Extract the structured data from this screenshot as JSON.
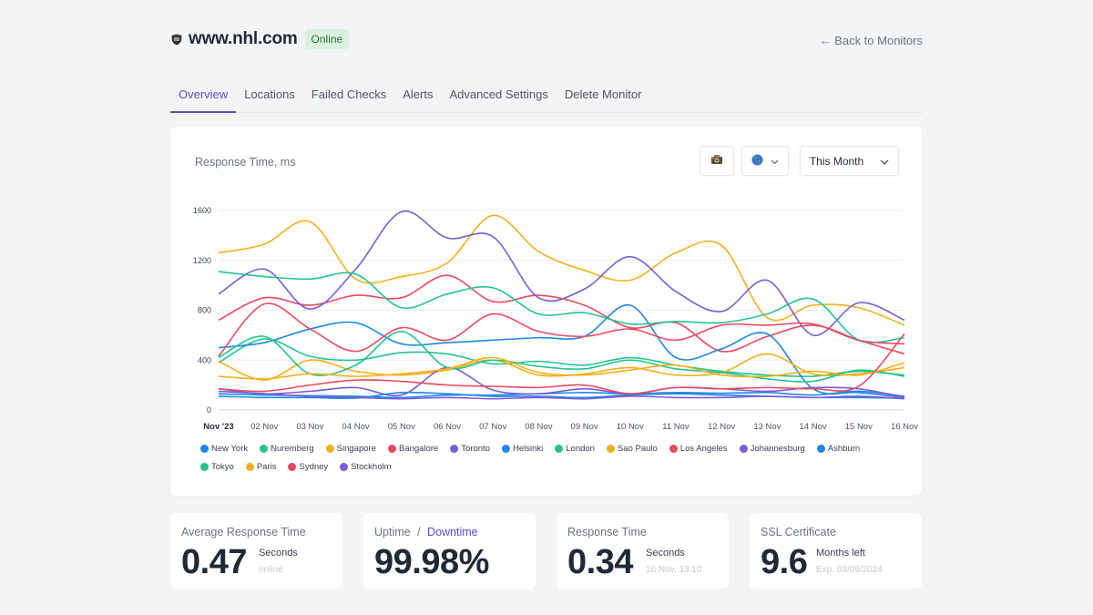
{
  "header": {
    "site": "www.nhl.com",
    "status": "Online",
    "back_label": "← Back to Monitors"
  },
  "tabs": [
    "Overview",
    "Locations",
    "Failed Checks",
    "Alerts",
    "Advanced Settings",
    "Delete Monitor"
  ],
  "active_tab": "Overview",
  "panel": {
    "title": "Response Time, ms",
    "camera_icon": "camera-icon",
    "globe_icon": "globe-icon",
    "range_label": "This Month"
  },
  "chart_data": {
    "type": "line",
    "x": [
      "Nov '23",
      "02 Nov",
      "03 Nov",
      "04 Nov",
      "05 Nov",
      "06 Nov",
      "07 Nov",
      "08 Nov",
      "09 Nov",
      "10 Nov",
      "11 Nov",
      "12 Nov",
      "13 Nov",
      "14 Nov",
      "15 Nov",
      "16 Nov"
    ],
    "ylim": [
      0,
      1600
    ],
    "yticks": [
      0,
      400,
      800,
      1200,
      1600
    ],
    "grid": true,
    "legend": "bottom",
    "series": [
      {
        "name": "New York",
        "color": "#1e88e5",
        "values": [
          130,
          120,
          115,
          110,
          100,
          120,
          120,
          130,
          140,
          130,
          140,
          135,
          140,
          120,
          150,
          110
        ]
      },
      {
        "name": "Nuremberg",
        "color": "#22c48f",
        "values": [
          380,
          570,
          430,
          400,
          460,
          450,
          370,
          390,
          360,
          420,
          360,
          310,
          280,
          270,
          310,
          280
        ]
      },
      {
        "name": "Singapore",
        "color": "#f2b01e",
        "values": [
          1260,
          1330,
          1510,
          1050,
          1070,
          1180,
          1560,
          1270,
          1120,
          1040,
          1260,
          1320,
          740,
          840,
          820,
          680
        ]
      },
      {
        "name": "Bangalore",
        "color": "#e84a5f",
        "values": [
          720,
          900,
          840,
          920,
          900,
          1080,
          870,
          920,
          840,
          660,
          700,
          470,
          590,
          680,
          560,
          450
        ]
      },
      {
        "name": "Toronto",
        "color": "#7b5cd6",
        "values": [
          930,
          1130,
          810,
          1130,
          1590,
          1380,
          1390,
          900,
          970,
          1230,
          950,
          790,
          1040,
          600,
          860,
          720
        ]
      },
      {
        "name": "Helsinki",
        "color": "#1e88e5",
        "values": [
          500,
          540,
          650,
          700,
          530,
          540,
          560,
          580,
          590,
          840,
          420,
          490,
          610,
          170,
          140,
          100
        ]
      },
      {
        "name": "London",
        "color": "#22c48f",
        "values": [
          1110,
          1070,
          1050,
          1090,
          820,
          930,
          980,
          770,
          780,
          690,
          710,
          700,
          770,
          890,
          560,
          580
        ]
      },
      {
        "name": "Sao Paulo",
        "color": "#f2b01e",
        "values": [
          390,
          240,
          400,
          310,
          280,
          320,
          400,
          280,
          290,
          340,
          280,
          300,
          450,
          290,
          290,
          340
        ]
      },
      {
        "name": "Los Angeles",
        "color": "#e84a5f",
        "values": [
          430,
          850,
          650,
          470,
          660,
          560,
          770,
          630,
          590,
          650,
          560,
          680,
          680,
          690,
          560,
          530
        ]
      },
      {
        "name": "Johannesburg",
        "color": "#7b5cd6",
        "values": [
          170,
          130,
          150,
          180,
          120,
          340,
          160,
          130,
          170,
          130,
          180,
          170,
          150,
          180,
          170,
          100
        ]
      },
      {
        "name": "Ashburn",
        "color": "#1e88e5",
        "values": [
          110,
          100,
          100,
          95,
          140,
          130,
          110,
          110,
          100,
          120,
          130,
          120,
          110,
          100,
          100,
          95
        ]
      },
      {
        "name": "Tokyo",
        "color": "#22c48f",
        "values": [
          420,
          590,
          290,
          360,
          630,
          340,
          400,
          350,
          330,
          400,
          330,
          300,
          250,
          230,
          320,
          270
        ]
      },
      {
        "name": "Paris",
        "color": "#f2b01e",
        "values": [
          270,
          250,
          290,
          270,
          290,
          330,
          420,
          300,
          280,
          320,
          360,
          280,
          270,
          310,
          280,
          380
        ]
      },
      {
        "name": "Sydney",
        "color": "#e84a5f",
        "values": [
          170,
          150,
          200,
          240,
          230,
          200,
          190,
          180,
          200,
          130,
          180,
          170,
          180,
          170,
          190,
          610
        ]
      },
      {
        "name": "Stockholm",
        "color": "#7b5cd6",
        "values": [
          150,
          130,
          110,
          100,
          90,
          100,
          90,
          100,
          90,
          110,
          100,
          100,
          110,
          100,
          110,
          90
        ]
      }
    ]
  },
  "stats": [
    {
      "label": "Average Response Time",
      "value": "0.47",
      "unit": "Seconds",
      "sub": "online"
    },
    {
      "label": "Uptime",
      "sep": "/",
      "link": "Downtime",
      "value": "99.98%"
    },
    {
      "label": "Response Time",
      "value": "0.34",
      "unit": "Seconds",
      "sub": "16 Nov, 13:10"
    },
    {
      "label": "SSL Certificate",
      "value": "9.6",
      "unit": "Months left",
      "sub": "Exp. 03/09/2024"
    }
  ]
}
